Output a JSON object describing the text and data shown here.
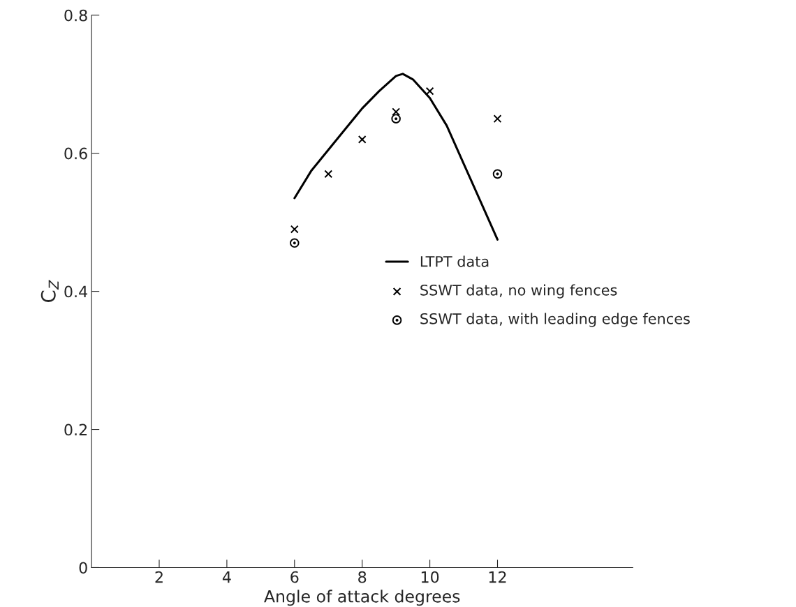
{
  "chart_data": {
    "type": "line",
    "xlabel": "Angle of attack degrees",
    "ylabel": "C$_{Z}$",
    "xlim": [
      0,
      16
    ],
    "xticks": [
      2,
      4,
      6,
      8,
      10,
      12
    ],
    "ylim": [
      0,
      0.8
    ],
    "yticks": [
      0,
      0.2,
      0.4,
      0.6,
      0.8
    ],
    "grid": false,
    "legend": "right",
    "series": [
      {
        "name": "LTPT data",
        "color": "#000000",
        "marker": "none",
        "line_style": "solid",
        "x": [
          6,
          6.5,
          7,
          7.5,
          8,
          8.5,
          9,
          9.2,
          9.5,
          10,
          10.5,
          11,
          11.5,
          12
        ],
        "values": [
          0.535,
          0.575,
          0.605,
          0.635,
          0.665,
          0.69,
          0.712,
          0.715,
          0.707,
          0.68,
          0.64,
          0.585,
          0.53,
          0.475
        ]
      },
      {
        "name": "SSWT data, no wing fences",
        "type": "scatter",
        "color": "#000000",
        "marker": "cross",
        "x": [
          6,
          7,
          8,
          9,
          10,
          12
        ],
        "values": [
          0.49,
          0.57,
          0.62,
          0.66,
          0.69,
          0.65
        ]
      },
      {
        "name": "SSWT data, with leading edge fences",
        "type": "scatter",
        "color": "#000000",
        "marker": "circle",
        "x": [
          6,
          9,
          12
        ],
        "values": [
          0.47,
          0.65,
          0.57
        ]
      }
    ]
  }
}
